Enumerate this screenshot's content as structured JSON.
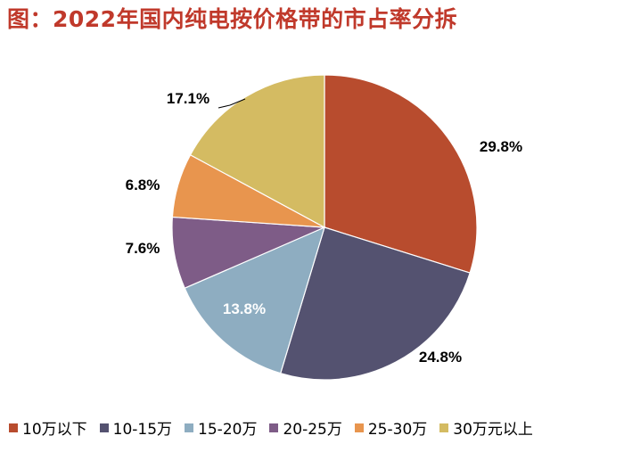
{
  "title": "图：2022年国内纯电按价格带的市占率分拆",
  "chart_data": {
    "type": "pie",
    "title": "图：2022年国内纯电按价格带的市占率分拆",
    "legend_position": "bottom",
    "slices": [
      {
        "name": "10万以下",
        "value": 29.8,
        "label": "29.8%",
        "color": "#b84c2e"
      },
      {
        "name": "10-15万",
        "value": 24.8,
        "label": "24.8%",
        "color": "#545270"
      },
      {
        "name": "15-20万",
        "value": 13.8,
        "label": "13.8%",
        "color": "#8eadc1"
      },
      {
        "name": "20-25万",
        "value": 7.6,
        "label": "7.6%",
        "color": "#7e5c87"
      },
      {
        "name": "25-30万",
        "value": 6.8,
        "label": "6.8%",
        "color": "#e8954e"
      },
      {
        "name": "30万元以上",
        "value": 17.1,
        "label": "17.1%",
        "color": "#d4bb62"
      }
    ]
  }
}
